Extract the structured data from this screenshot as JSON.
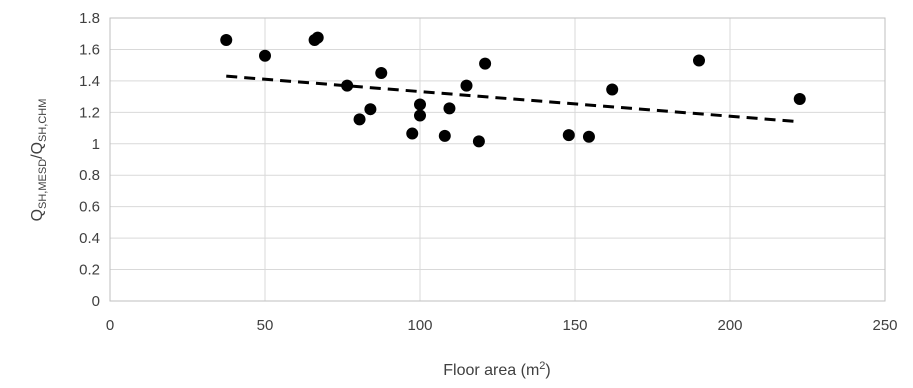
{
  "chart_data": {
    "type": "scatter",
    "title": "",
    "xlabel": {
      "main": "Floor area  (m",
      "sup": "2",
      "end": ")"
    },
    "ylabel": {
      "q1": "Q",
      "sub1": "SH,MESD",
      "slash": "/Q",
      "sub2": "SH,CHM"
    },
    "xlim": [
      0,
      250
    ],
    "ylim": [
      0,
      1.8
    ],
    "x_ticks": [
      "0",
      "50",
      "100",
      "150",
      "200",
      "250"
    ],
    "y_ticks": [
      "0",
      "0.2",
      "0.4",
      "0.6",
      "0.8",
      "1",
      "1.2",
      "1.4",
      "1.6",
      "1.8"
    ],
    "x_tick_values": [
      0,
      50,
      100,
      150,
      200,
      250
    ],
    "y_tick_values": [
      0,
      0.2,
      0.4,
      0.6,
      0.8,
      1,
      1.2,
      1.4,
      1.6,
      1.8
    ],
    "grid": true,
    "legend": "none",
    "points": [
      {
        "x": 37.5,
        "y": 1.66
      },
      {
        "x": 50,
        "y": 1.56
      },
      {
        "x": 66,
        "y": 1.66
      },
      {
        "x": 67,
        "y": 1.675
      },
      {
        "x": 76.5,
        "y": 1.37
      },
      {
        "x": 80.5,
        "y": 1.155
      },
      {
        "x": 84,
        "y": 1.22
      },
      {
        "x": 87.5,
        "y": 1.45
      },
      {
        "x": 97.5,
        "y": 1.065
      },
      {
        "x": 100,
        "y": 1.25
      },
      {
        "x": 100,
        "y": 1.18
      },
      {
        "x": 108,
        "y": 1.05
      },
      {
        "x": 109.5,
        "y": 1.225
      },
      {
        "x": 115,
        "y": 1.37
      },
      {
        "x": 119,
        "y": 1.015
      },
      {
        "x": 121,
        "y": 1.51
      },
      {
        "x": 148,
        "y": 1.055
      },
      {
        "x": 154.5,
        "y": 1.045
      },
      {
        "x": 162,
        "y": 1.345
      },
      {
        "x": 190,
        "y": 1.53
      },
      {
        "x": 222.5,
        "y": 1.285
      }
    ],
    "trendline": {
      "style": "dashed",
      "x": [
        37.5,
        222.5
      ],
      "y": [
        1.43,
        1.14
      ]
    }
  }
}
